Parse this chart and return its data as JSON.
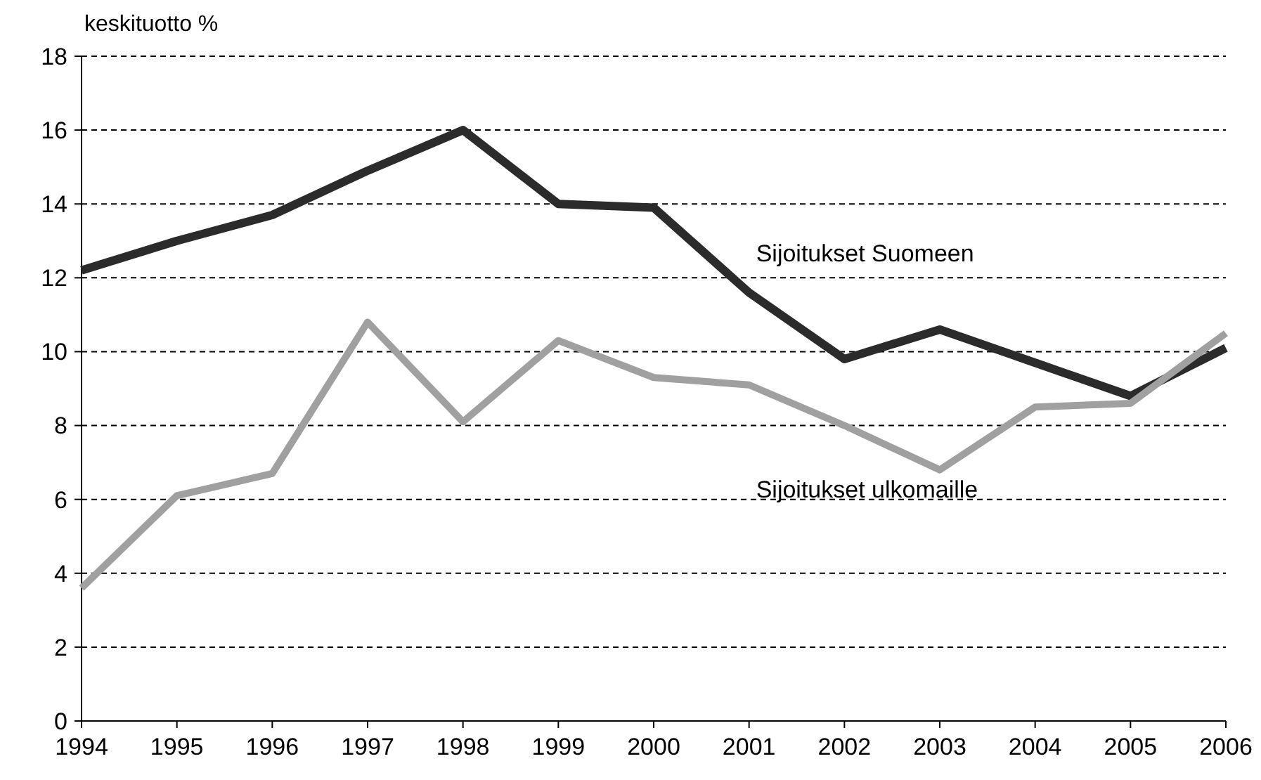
{
  "chart_data": {
    "type": "line",
    "ylabel": "keskituotto %",
    "x": [
      1994,
      1995,
      1996,
      1997,
      1998,
      1999,
      2000,
      2001,
      2002,
      2003,
      2004,
      2005,
      2006
    ],
    "xlim": [
      1994,
      2006
    ],
    "xticks": [
      1994,
      1995,
      1996,
      1997,
      1998,
      1999,
      2000,
      2001,
      2002,
      2003,
      2004,
      2005,
      2006
    ],
    "ylim": [
      0,
      18
    ],
    "yticks": [
      0,
      2,
      4,
      6,
      8,
      10,
      12,
      14,
      16,
      18
    ],
    "grid": "y",
    "legend": false,
    "marker": "none",
    "line_style": "solid",
    "series": [
      {
        "name": "Sijoitukset Suomeen",
        "color": "#2b2b2b",
        "values": [
          12.2,
          13.0,
          13.7,
          14.9,
          16.0,
          14.0,
          13.9,
          11.6,
          9.8,
          10.6,
          9.7,
          8.8,
          10.1
        ]
      },
      {
        "name": "Sijoitukset ulkomaille",
        "color": "#a0a0a0",
        "values": [
          3.6,
          6.1,
          6.7,
          10.8,
          8.1,
          10.3,
          9.3,
          9.1,
          8.0,
          6.8,
          8.5,
          8.6,
          10.5
        ]
      }
    ]
  }
}
